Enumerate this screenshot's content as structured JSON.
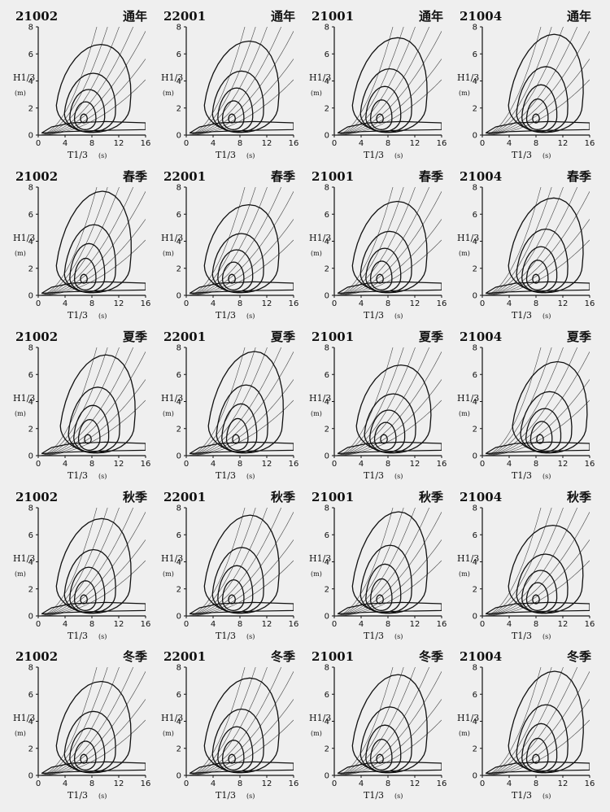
{
  "stations": [
    "21002",
    "22001",
    "21001",
    "21004"
  ],
  "seasons": [
    "通年",
    "春季",
    "夏季",
    "秋季",
    "冬季"
  ],
  "axes": {
    "ylabel": "H1/3",
    "ylabel_unit": "(m)",
    "xlabel": "T1/3",
    "xlabel_unit": "(s)"
  },
  "chart_data": {
    "type": "contour",
    "layout": "5 rows (seasons) x 4 columns (stations)",
    "x_ticks": [
      0,
      4,
      8,
      12,
      16
    ],
    "y_ticks": [
      0,
      2,
      4,
      6,
      8
    ],
    "xlim": [
      0,
      16
    ],
    "ylim": [
      0,
      8
    ],
    "xlabel": "T1/3 (s)",
    "ylabel": "H1/3 (m)",
    "grid": false,
    "reference_curves": "wave steepness lines H = k*T^2 (fan of thin curves from origin)",
    "panels_note": "each panel shows nested joint-frequency contours of significant wave height vs significant wave period; peak near T≈7-8 s, H≈1-1.5 m"
  },
  "colors": {
    "background": "#efefef",
    "ink": "#111111"
  }
}
